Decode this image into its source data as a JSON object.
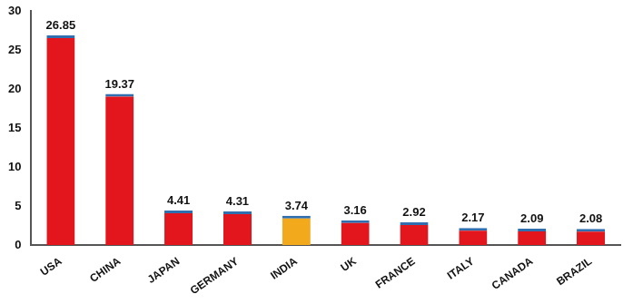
{
  "chart_data": {
    "type": "bar",
    "categories": [
      "USA",
      "CHINA",
      "JAPAN",
      "GERMANY",
      "INDIA",
      "UK",
      "FRANCE",
      "ITALY",
      "CANADA",
      "BRAZIL"
    ],
    "values": [
      26.85,
      19.37,
      4.41,
      4.31,
      3.74,
      3.16,
      2.92,
      2.17,
      2.09,
      2.08
    ],
    "colors": [
      "#e3161d",
      "#e3161d",
      "#e3161d",
      "#e3161d",
      "#f2aa1c",
      "#e3161d",
      "#e3161d",
      "#e3161d",
      "#e3161d",
      "#e3161d"
    ],
    "ylim": [
      0,
      30
    ],
    "yticks": [
      0,
      5,
      10,
      15,
      20,
      25,
      30
    ],
    "grid": false,
    "data_labels": true
  }
}
